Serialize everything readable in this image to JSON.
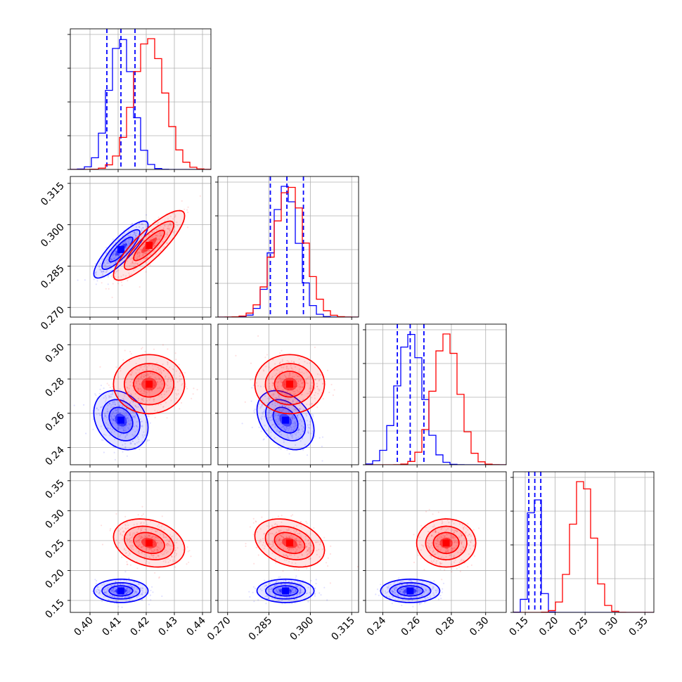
{
  "chart_data": {
    "type": "scatter",
    "title": "",
    "plot_kind": "corner plot (pairwise 2D density contours with 1D marginal histograms)",
    "parameter_count": 4,
    "colors": {
      "blue": "#0000ff",
      "red": "#ff0000"
    },
    "grid": true,
    "axes": [
      {
        "label": "",
        "range": [
          0.393,
          0.443
        ],
        "ticks": [
          "0.40",
          "0.41",
          "0.42",
          "0.43",
          "0.44"
        ],
        "tick_values": [
          0.4,
          0.41,
          0.42,
          0.43,
          0.44
        ]
      },
      {
        "label": "",
        "range": [
          0.2665,
          0.3175
        ],
        "ticks": [
          "0.270",
          "0.285",
          "0.300",
          "0.315"
        ],
        "tick_values": [
          0.27,
          0.285,
          0.3,
          0.315
        ]
      },
      {
        "label": "",
        "range": [
          0.23,
          0.312
        ],
        "ticks": [
          "0.24",
          "0.26",
          "0.28",
          "0.30"
        ],
        "tick_values": [
          0.24,
          0.26,
          0.28,
          0.3
        ]
      },
      {
        "label": "",
        "range": [
          0.13,
          0.365
        ],
        "ticks": [
          "0.15",
          "0.20",
          "0.25",
          "0.30",
          "0.35"
        ],
        "tick_values": [
          0.15,
          0.2,
          0.25,
          0.3,
          0.35
        ]
      }
    ],
    "series": [
      {
        "color": "#0000ff",
        "means": [
          0.411,
          0.291,
          0.256,
          0.166
        ],
        "sigmas": [
          0.0042,
          0.0045,
          0.0075,
          0.0085
        ],
        "quantile_lines": [
          [
            0.406,
            0.411,
            0.416
          ],
          [
            0.2855,
            0.2915,
            0.2975
          ],
          [
            0.2485,
            0.256,
            0.264
          ],
          [
            0.156,
            0.166,
            0.176
          ]
        ],
        "correlations": {
          "0-1": 0.85,
          "0-2": -0.25,
          "0-3": 0.0,
          "1-2": -0.35,
          "1-3": 0.0,
          "2-3": 0.0
        }
      },
      {
        "color": "#ff0000",
        "means": [
          0.421,
          0.2925,
          0.277,
          0.246
        ],
        "sigmas": [
          0.0055,
          0.0055,
          0.0075,
          0.0175
        ],
        "quantile_lines": [],
        "correlations": {
          "0-1": 0.85,
          "0-2": 0.0,
          "0-3": -0.25,
          "1-2": 0.0,
          "1-3": -0.3,
          "2-3": 0.0
        }
      }
    ],
    "histogram_bins": 20
  }
}
